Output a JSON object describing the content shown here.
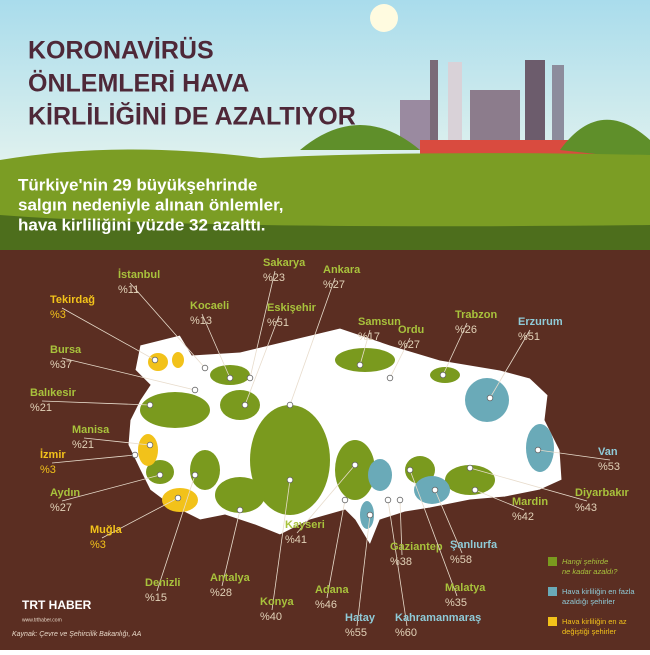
{
  "header": {
    "title_lines": [
      "KORONAVİRÜS",
      "ÖNLEMLERİ HAVA",
      "KİRLİLİĞİNİ DE AZALTIYOR"
    ],
    "subtitle_lines": [
      "Türkiye'nin 29 büyükşehrinde",
      "salgın nedeniyle alınan önlemler,",
      "hava kirliliğini yüzde 32 azalttı."
    ]
  },
  "cities": [
    {
      "name": "Tekirdağ",
      "value": "%3",
      "group": "least"
    },
    {
      "name": "İstanbul",
      "value": "%11",
      "group": "amount"
    },
    {
      "name": "Sakarya",
      "value": "%23",
      "group": "amount"
    },
    {
      "name": "Ankara",
      "value": "%27",
      "group": "amount"
    },
    {
      "name": "Kocaeli",
      "value": "%13",
      "group": "amount"
    },
    {
      "name": "Eskişehir",
      "value": "%51",
      "group": "amount"
    },
    {
      "name": "Samsun",
      "value": "%17",
      "group": "amount"
    },
    {
      "name": "Ordu",
      "value": "%27",
      "group": "amount"
    },
    {
      "name": "Trabzon",
      "value": "%26",
      "group": "amount"
    },
    {
      "name": "Erzurum",
      "value": "%51",
      "group": "most"
    },
    {
      "name": "Bursa",
      "value": "%37",
      "group": "amount"
    },
    {
      "name": "Balıkesir",
      "value": "%21",
      "group": "amount"
    },
    {
      "name": "Manisa",
      "value": "%21",
      "group": "amount"
    },
    {
      "name": "İzmir",
      "value": "%3",
      "group": "least"
    },
    {
      "name": "Aydın",
      "value": "%27",
      "group": "amount"
    },
    {
      "name": "Muğla",
      "value": "%3",
      "group": "least"
    },
    {
      "name": "Denizli",
      "value": "%15",
      "group": "amount"
    },
    {
      "name": "Antalya",
      "value": "%28",
      "group": "amount"
    },
    {
      "name": "Konya",
      "value": "%40",
      "group": "amount"
    },
    {
      "name": "Kayseri",
      "value": "%41",
      "group": "amount"
    },
    {
      "name": "Adana",
      "value": "%46",
      "group": "amount"
    },
    {
      "name": "Hatay",
      "value": "%55",
      "group": "most"
    },
    {
      "name": "Kahramanmaraş",
      "value": "%60",
      "group": "most"
    },
    {
      "name": "Gaziantep",
      "value": "%38",
      "group": "amount"
    },
    {
      "name": "Malatya",
      "value": "%35",
      "group": "amount"
    },
    {
      "name": "Şanlıurfa",
      "value": "%58",
      "group": "most"
    },
    {
      "name": "Mardin",
      "value": "%42",
      "group": "amount"
    },
    {
      "name": "Diyarbakır",
      "value": "%43",
      "group": "amount"
    },
    {
      "name": "Van",
      "value": "%53",
      "group": "most"
    }
  ],
  "legend": [
    {
      "key": "amount",
      "color": "#7a9a1e",
      "lines": [
        "Hangi şehirde",
        "ne kadar azaldı?"
      ]
    },
    {
      "key": "most",
      "color": "#6aaab8",
      "lines": [
        "Hava kirliliğin en fazla",
        "azaldığı şehirler"
      ]
    },
    {
      "key": "least",
      "color": "#f2c21a",
      "lines": [
        "Hava kirliliğin en az",
        "değiştiği şehirler"
      ]
    }
  ],
  "footer": {
    "logo": "TRT HABER",
    "url": "www.trthaber.com",
    "source": "Kaynak: Çevre ve Şehircilik Bakanlığı, AA"
  }
}
